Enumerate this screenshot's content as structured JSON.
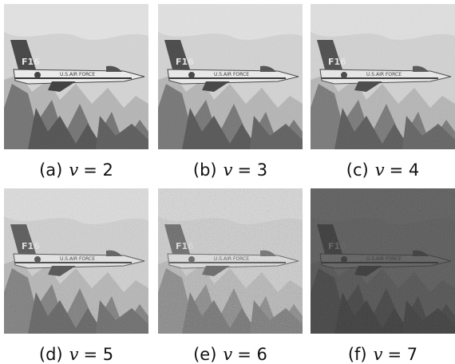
{
  "figure": {
    "panels": [
      {
        "label": "(a)",
        "variable": "v",
        "value": "= 2"
      },
      {
        "label": "(b)",
        "variable": "v",
        "value": "= 3"
      },
      {
        "label": "(c)",
        "variable": "v",
        "value": "= 4"
      },
      {
        "label": "(d)",
        "variable": "v",
        "value": "= 5"
      },
      {
        "label": "(e)",
        "variable": "v",
        "value": "= 6"
      },
      {
        "label": "(f)",
        "variable": "v",
        "value": "= 7"
      }
    ]
  }
}
